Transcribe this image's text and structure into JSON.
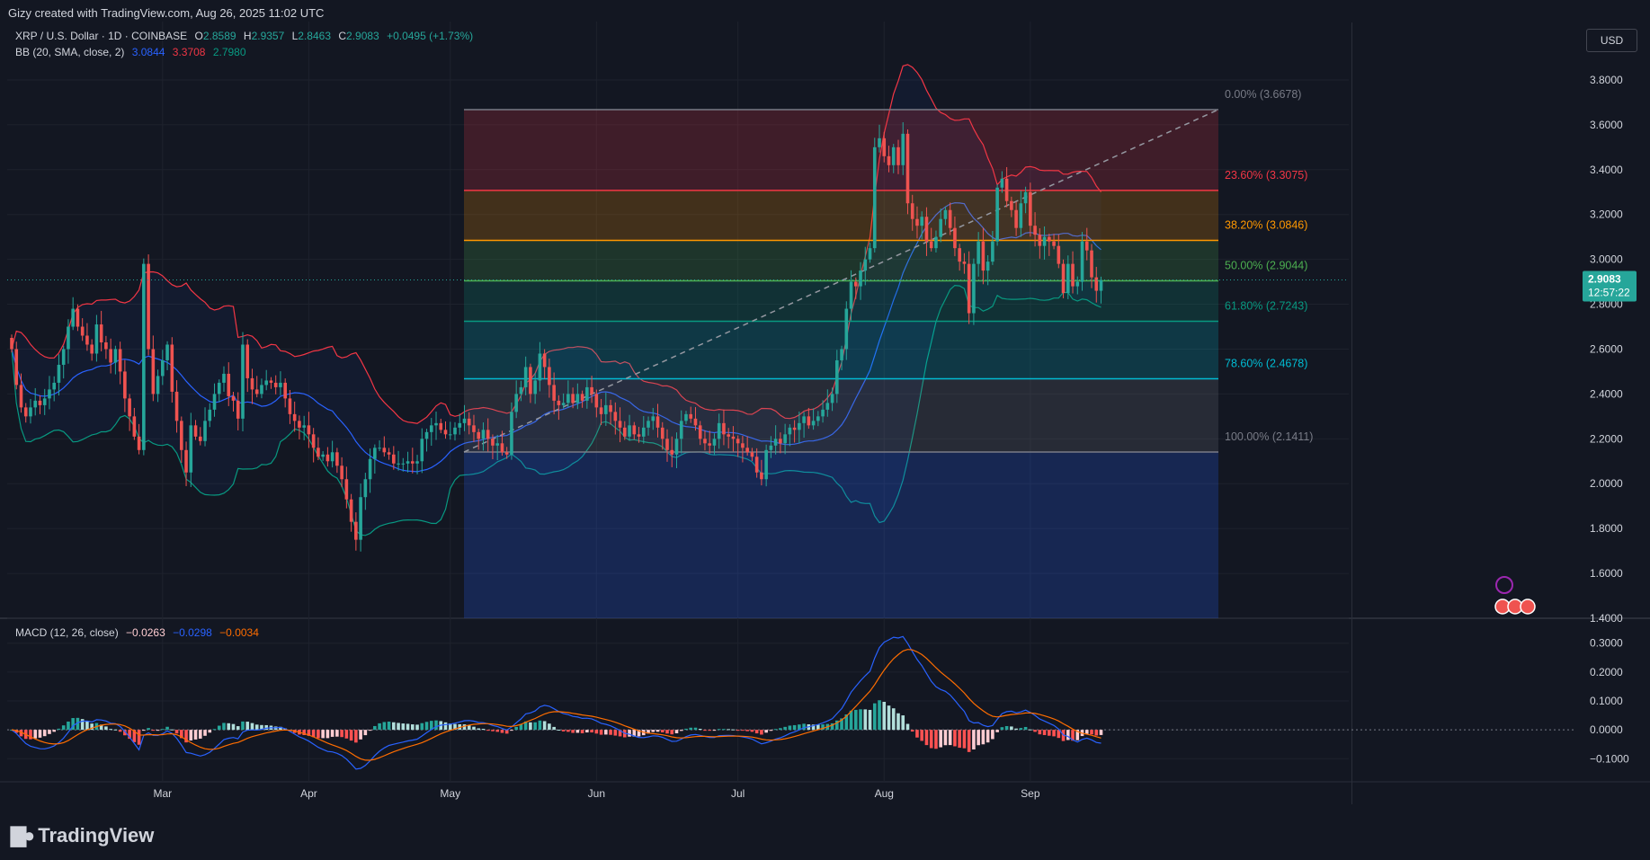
{
  "header": {
    "created_by": "Gizy created with TradingView.com, Aug 26, 2025 11:02 UTC"
  },
  "legend": {
    "symbol": "XRP / U.S. Dollar · 1D · COINBASE",
    "o_label": "O",
    "o_value": "2.8589",
    "h_label": "H",
    "h_value": "2.9357",
    "l_label": "L",
    "l_value": "2.8463",
    "c_label": "C",
    "c_value": "2.9083",
    "change": "+0.0495 (+1.73%)",
    "bb_label": "BB (20, SMA, close, 2)",
    "bb_basis": "3.0844",
    "bb_upper": "3.3708",
    "bb_lower": "2.7980",
    "macd_label": "MACD (12, 26, close)",
    "macd_hist": "−0.0263",
    "macd_line": "−0.0298",
    "macd_signal": "−0.0034"
  },
  "currency_button": "USD",
  "price_tag": {
    "price": "2.9083",
    "countdown": "12:57:22"
  },
  "brand": "TradingView",
  "colors": {
    "background": "#131722",
    "up": "#26a69a",
    "down": "#ef5350",
    "bb_basis": "#2962ff",
    "bb_upper": "#f23645",
    "bb_lower": "#089981",
    "macd_line": "#2962ff",
    "signal_line": "#ff6d00"
  },
  "chart_data": [
    {
      "type": "candlestick",
      "symbol": "XRP / U.S. Dollar",
      "interval": "1D",
      "ylim": [
        1.4,
        3.9
      ],
      "yticks": [
        "3.8000",
        "3.6000",
        "3.4000",
        "3.2000",
        "3.0000",
        "2.8000",
        "2.6000",
        "2.4000",
        "2.2000",
        "2.0000",
        "1.8000",
        "1.6000",
        "1.4000"
      ],
      "xticks": [
        "Mar",
        "Apr",
        "May",
        "Jun",
        "Jul",
        "Aug",
        "Sep"
      ],
      "closes": [
        2.6,
        2.44,
        2.34,
        2.3,
        2.34,
        2.37,
        2.35,
        2.38,
        2.42,
        2.45,
        2.53,
        2.6,
        2.7,
        2.78,
        2.7,
        2.66,
        2.62,
        2.58,
        2.71,
        2.63,
        2.6,
        2.54,
        2.6,
        2.5,
        2.38,
        2.3,
        2.21,
        2.15,
        2.98,
        2.6,
        2.4,
        2.48,
        2.55,
        2.62,
        2.41,
        2.28,
        2.15,
        2.05,
        2.26,
        2.21,
        2.19,
        2.28,
        2.33,
        2.4,
        2.45,
        2.49,
        2.39,
        2.37,
        2.29,
        2.62,
        2.47,
        2.42,
        2.4,
        2.44,
        2.46,
        2.45,
        2.43,
        2.45,
        2.38,
        2.31,
        2.28,
        2.25,
        2.26,
        2.22,
        2.16,
        2.12,
        2.13,
        2.1,
        2.14,
        2.08,
        2.02,
        1.93,
        1.83,
        1.75,
        1.94,
        2.02,
        2.11,
        2.16,
        2.16,
        2.14,
        2.13,
        2.09,
        2.09,
        2.09,
        2.1,
        2.09,
        2.1,
        2.2,
        2.23,
        2.26,
        2.27,
        2.24,
        2.22,
        2.22,
        2.25,
        2.27,
        2.29,
        2.26,
        2.23,
        2.2,
        2.24,
        2.2,
        2.17,
        2.18,
        2.14,
        2.13,
        2.32,
        2.4,
        2.43,
        2.52,
        2.4,
        2.46,
        2.58,
        2.52,
        2.44,
        2.37,
        2.35,
        2.36,
        2.4,
        2.36,
        2.4,
        2.37,
        2.43,
        2.4,
        2.34,
        2.31,
        2.35,
        2.32,
        2.28,
        2.25,
        2.21,
        2.26,
        2.22,
        2.21,
        2.25,
        2.28,
        2.3,
        2.25,
        2.2,
        2.15,
        2.13,
        2.2,
        2.28,
        2.31,
        2.29,
        2.26,
        2.2,
        2.18,
        2.17,
        2.2,
        2.27,
        2.22,
        2.21,
        2.2,
        2.18,
        2.16,
        2.14,
        2.12,
        2.05,
        2.02,
        2.15,
        2.17,
        2.2,
        2.18,
        2.22,
        2.25,
        2.24,
        2.27,
        2.3,
        2.26,
        2.28,
        2.3,
        2.33,
        2.36,
        2.4,
        2.55,
        2.6,
        2.78,
        2.9,
        2.88,
        2.95,
        3.0,
        3.05,
        3.5,
        3.54,
        3.46,
        3.42,
        3.5,
        3.42,
        3.56,
        3.25,
        3.18,
        3.15,
        3.19,
        3.08,
        3.05,
        3.1,
        3.18,
        3.22,
        3.14,
        3.05,
        2.99,
        2.98,
        2.76,
        2.98,
        3.08,
        2.95,
        2.99,
        3.08,
        3.32,
        3.36,
        3.26,
        3.22,
        3.14,
        3.25,
        3.3,
        3.15,
        3.11,
        3.06,
        3.1,
        3.08,
        3.06,
        2.98,
        2.85,
        2.98,
        2.88,
        2.9,
        3.08,
        3.04,
        2.92,
        2.86,
        2.908
      ],
      "bollinger": {
        "period": 20,
        "std": 2,
        "basis": 3.0844,
        "upper": 3.3708,
        "lower": 2.798
      },
      "fibonacci": {
        "high": 3.6678,
        "low": 2.1411,
        "levels": [
          {
            "label": "0.00% (3.6678)",
            "value": 3.6678
          },
          {
            "label": "23.60% (3.3075)",
            "value": 3.3075
          },
          {
            "label": "38.20% (3.0846)",
            "value": 3.0846
          },
          {
            "label": "50.00% (2.9044)",
            "value": 2.9044
          },
          {
            "label": "61.80% (2.7243)",
            "value": 2.7243
          },
          {
            "label": "78.60% (2.4678)",
            "value": 2.4678
          },
          {
            "label": "100.00% (2.1411)",
            "value": 2.1411
          }
        ]
      },
      "last_price": 2.9083
    },
    {
      "type": "macd",
      "params": [
        12,
        26
      ],
      "ylim": [
        -0.18,
        0.38
      ],
      "yticks": [
        "0.3000",
        "0.2000",
        "0.1000",
        "0.0000",
        "−0.1000"
      ]
    }
  ]
}
